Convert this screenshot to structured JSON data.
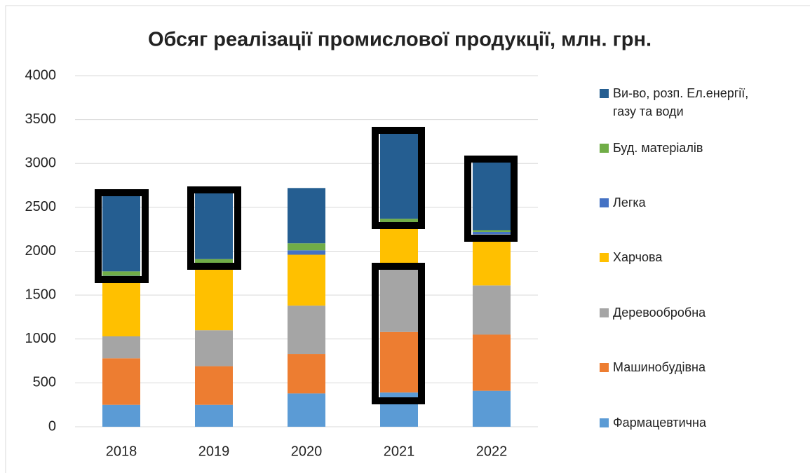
{
  "chart_data": {
    "type": "stacked_bar",
    "title": "Обсяг реалізації промислової продукції, млн. грн.",
    "categories": [
      "2018",
      "2019",
      "2020",
      "2021",
      "2022"
    ],
    "series": [
      {
        "name": "Фармацевтична",
        "color": "#5b9bd5",
        "values": [
          250,
          250,
          380,
          390,
          410
        ]
      },
      {
        "name": "Машинобудівна",
        "color": "#ed7d31",
        "values": [
          530,
          440,
          450,
          690,
          640
        ]
      },
      {
        "name": "Деревообробна",
        "color": "#a5a5a5",
        "values": [
          250,
          410,
          550,
          720,
          560
        ]
      },
      {
        "name": "Харчова",
        "color": "#ffc000",
        "values": [
          620,
          690,
          580,
          490,
          580
        ]
      },
      {
        "name": "Легка",
        "color": "#4472c4",
        "values": [
          70,
          60,
          50,
          40,
          30
        ]
      },
      {
        "name": "Буд. матеріалів",
        "color": "#70ad47",
        "values": [
          50,
          60,
          80,
          40,
          20
        ]
      },
      {
        "name": "Ви-во, розп. Ел.енергії, газу та води",
        "color": "#255e91",
        "values": [
          880,
          770,
          630,
          990,
          780
        ]
      }
    ],
    "ylim": [
      0,
      4000
    ],
    "yticks": [
      0,
      500,
      1000,
      1500,
      2000,
      2500,
      3000,
      3500,
      4000
    ],
    "grid": true
  }
}
